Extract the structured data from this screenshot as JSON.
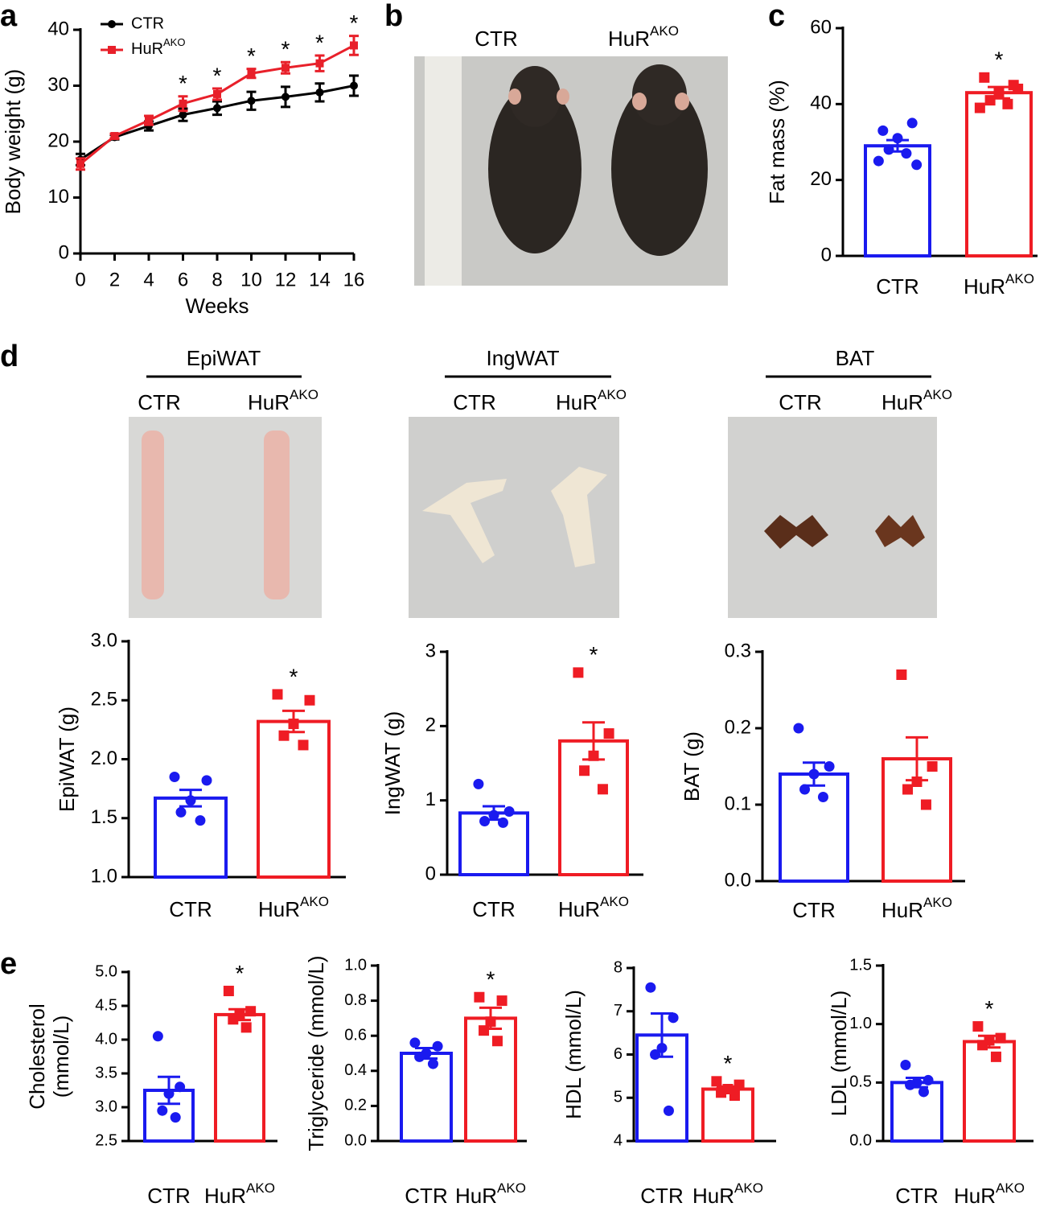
{
  "panel_labels": [
    "a",
    "b",
    "c",
    "d",
    "e"
  ],
  "photos": [
    {
      "labels": [
        "CTR",
        {
          "text": "HuR",
          "sup": "AKO"
        }
      ]
    },
    {
      "title": "EpiWAT",
      "labels": [
        "CTR",
        {
          "text": "HuR",
          "sup": "AKO"
        }
      ]
    },
    {
      "title": "IngWAT",
      "labels": [
        "CTR",
        {
          "text": "HuR",
          "sup": "AKO"
        }
      ]
    },
    {
      "title": "BAT",
      "labels": [
        "CTR",
        {
          "text": "HuR",
          "sup": "AKO"
        }
      ]
    }
  ],
  "chart_data": [
    {
      "type": "line",
      "xlabel": "Weeks",
      "ylabel": "Body weight (g)",
      "x": [
        0,
        2,
        4,
        6,
        8,
        10,
        12,
        14,
        16
      ],
      "xlim": [
        0,
        16
      ],
      "xticks": [
        0,
        2,
        4,
        6,
        8,
        10,
        12,
        14,
        16
      ],
      "ylim": [
        0,
        40
      ],
      "yticks": [
        0,
        10,
        20,
        30,
        40
      ],
      "legend": "top-left",
      "series": [
        {
          "name": "CTR",
          "color": "#000000",
          "marker": "circle",
          "values": [
            16.8,
            20.8,
            22.8,
            24.8,
            26,
            27.3,
            28,
            28.8,
            30
          ],
          "errors": [
            1,
            0.4,
            0.8,
            1.1,
            1.2,
            1.6,
            1.8,
            1.6,
            1.8
          ]
        },
        {
          "name": {
            "text": "HuR",
            "sup": "AKO"
          },
          "color": "#e8202a",
          "marker": "square",
          "values": [
            16,
            21,
            23.8,
            26.8,
            28.5,
            32.2,
            33.2,
            34,
            37.2
          ],
          "errors": [
            1,
            0.4,
            0.8,
            1.3,
            1,
            0.8,
            1,
            1.4,
            1.7
          ]
        }
      ],
      "significance": [
        null,
        null,
        null,
        "*",
        "*",
        "*",
        "*",
        "*",
        "*"
      ]
    },
    {
      "type": "bar",
      "ylabel": "Fat mass (%)",
      "categories": [
        "CTR",
        {
          "text": "HuR",
          "sup": "AKO"
        }
      ],
      "colors": [
        "#1a1aef",
        "#ef1c24"
      ],
      "markers": [
        "circle",
        "square"
      ],
      "values": [
        29,
        43
      ],
      "errors": [
        1.5,
        1.5
      ],
      "points": [
        [
          33,
          35,
          31,
          28,
          27,
          25,
          24
        ],
        [
          47,
          45,
          43,
          41,
          40,
          39,
          44
        ]
      ],
      "ylim": [
        0,
        60
      ],
      "yticks": [
        0,
        20,
        40,
        60
      ],
      "significance": [
        null,
        "*"
      ]
    },
    {
      "type": "bar",
      "ylabel": "EpiWAT (g)",
      "categories": [
        "CTR",
        {
          "text": "HuR",
          "sup": "AKO"
        }
      ],
      "colors": [
        "#1a1aef",
        "#ef1c24"
      ],
      "markers": [
        "circle",
        "square"
      ],
      "values": [
        1.67,
        2.32
      ],
      "errors": [
        0.07,
        0.09
      ],
      "points": [
        [
          1.85,
          1.82,
          1.65,
          1.55,
          1.48
        ],
        [
          2.55,
          2.5,
          2.3,
          2.2,
          2.12
        ]
      ],
      "ylim": [
        1,
        3
      ],
      "yticks": [
        {
          "value": 1,
          "label": "1.0"
        },
        1.5,
        {
          "value": 2,
          "label": "2.0"
        },
        2.5,
        {
          "value": 3,
          "label": "3.0"
        }
      ],
      "significance": [
        null,
        "*"
      ]
    },
    {
      "type": "bar",
      "ylabel": "IngWAT (g)",
      "categories": [
        "CTR",
        {
          "text": "HuR",
          "sup": "AKO"
        }
      ],
      "colors": [
        "#1a1aef",
        "#ef1c24"
      ],
      "markers": [
        "circle",
        "square"
      ],
      "values": [
        0.83,
        1.8
      ],
      "errors": [
        0.09,
        0.25
      ],
      "points": [
        [
          1.22,
          0.85,
          0.8,
          0.72,
          0.7
        ],
        [
          2.72,
          1.9,
          1.6,
          1.4,
          1.15
        ]
      ],
      "ylim": [
        0,
        3
      ],
      "yticks": [
        0,
        1,
        2,
        3
      ],
      "significance": [
        null,
        "*"
      ]
    },
    {
      "type": "bar",
      "ylabel": "BAT (g)",
      "categories": [
        "CTR",
        {
          "text": "HuR",
          "sup": "AKO"
        }
      ],
      "colors": [
        "#1a1aef",
        "#ef1c24"
      ],
      "markers": [
        "circle",
        "square"
      ],
      "values": [
        0.14,
        0.16
      ],
      "errors": [
        0.015,
        0.028
      ],
      "points": [
        [
          0.2,
          0.15,
          0.14,
          0.12,
          0.11
        ],
        [
          0.27,
          0.15,
          0.13,
          0.12,
          0.1
        ]
      ],
      "ylim": [
        0,
        0.3
      ],
      "yticks": [
        {
          "value": 0,
          "label": "0.0"
        },
        0.1,
        0.2,
        0.3
      ]
    },
    {
      "type": "bar",
      "ylabel": [
        "Cholesterol",
        "(mmol/L)"
      ],
      "categories": [
        "CTR",
        {
          "text": "HuR",
          "sup": "AKO"
        }
      ],
      "colors": [
        "#1a1aef",
        "#ef1c24"
      ],
      "markers": [
        "circle",
        "square"
      ],
      "values": [
        3.25,
        4.37
      ],
      "errors": [
        0.2,
        0.08
      ],
      "points": [
        [
          4.05,
          3.3,
          3.2,
          2.95,
          2.85
        ],
        [
          4.72,
          4.42,
          4.38,
          4.3,
          4.18
        ]
      ],
      "ylim": [
        2.5,
        5
      ],
      "yticks": [
        2.5,
        {
          "value": 3,
          "label": "3.0"
        },
        3.5,
        {
          "value": 4,
          "label": "4.0"
        },
        4.5,
        {
          "value": 5,
          "label": "5.0"
        }
      ],
      "significance": [
        null,
        "*"
      ]
    },
    {
      "type": "bar",
      "ylabel": "Triglyceride (mmol/L)",
      "categories": [
        "CTR",
        {
          "text": "HuR",
          "sup": "AKO"
        }
      ],
      "colors": [
        "#1a1aef",
        "#ef1c24"
      ],
      "markers": [
        "circle",
        "square"
      ],
      "values": [
        0.5,
        0.7
      ],
      "errors": [
        0.03,
        0.06
      ],
      "points": [
        [
          0.56,
          0.54,
          0.5,
          0.48,
          0.44
        ],
        [
          0.82,
          0.8,
          0.68,
          0.63,
          0.57
        ]
      ],
      "ylim": [
        0,
        1
      ],
      "yticks": [
        {
          "value": 0,
          "label": "0.0"
        },
        0.2,
        0.4,
        0.6,
        0.8,
        {
          "value": 1,
          "label": "1.0"
        }
      ],
      "significance": [
        null,
        "*"
      ]
    },
    {
      "type": "bar",
      "ylabel": "HDL (mmol/L)",
      "categories": [
        "CTR",
        {
          "text": "HuR",
          "sup": "AKO"
        }
      ],
      "colors": [
        "#1a1aef",
        "#ef1c24"
      ],
      "markers": [
        "circle",
        "square"
      ],
      "values": [
        6.45,
        5.2
      ],
      "errors": [
        0.5,
        0.06
      ],
      "points": [
        [
          7.55,
          6.85,
          6.15,
          6.0,
          4.7
        ],
        [
          5.38,
          5.3,
          5.2,
          5.12,
          5.05
        ]
      ],
      "ylim": [
        4,
        8
      ],
      "yticks": [
        4,
        5,
        6,
        7,
        8
      ],
      "significance": [
        null,
        "*"
      ]
    },
    {
      "type": "bar",
      "ylabel": "LDL (mmol/L)",
      "categories": [
        "CTR",
        {
          "text": "HuR",
          "sup": "AKO"
        }
      ],
      "colors": [
        "#1a1aef",
        "#ef1c24"
      ],
      "markers": [
        "circle",
        "square"
      ],
      "values": [
        0.5,
        0.85
      ],
      "errors": [
        0.04,
        0.05
      ],
      "points": [
        [
          0.65,
          0.52,
          0.5,
          0.48,
          0.42
        ],
        [
          0.98,
          0.88,
          0.86,
          0.82,
          0.72
        ]
      ],
      "ylim": [
        0,
        1.5
      ],
      "yticks": [
        {
          "value": 0,
          "label": "0.0"
        },
        0.5,
        {
          "value": 1,
          "label": "1.0"
        },
        1.5
      ],
      "significance": [
        null,
        "*"
      ]
    }
  ]
}
